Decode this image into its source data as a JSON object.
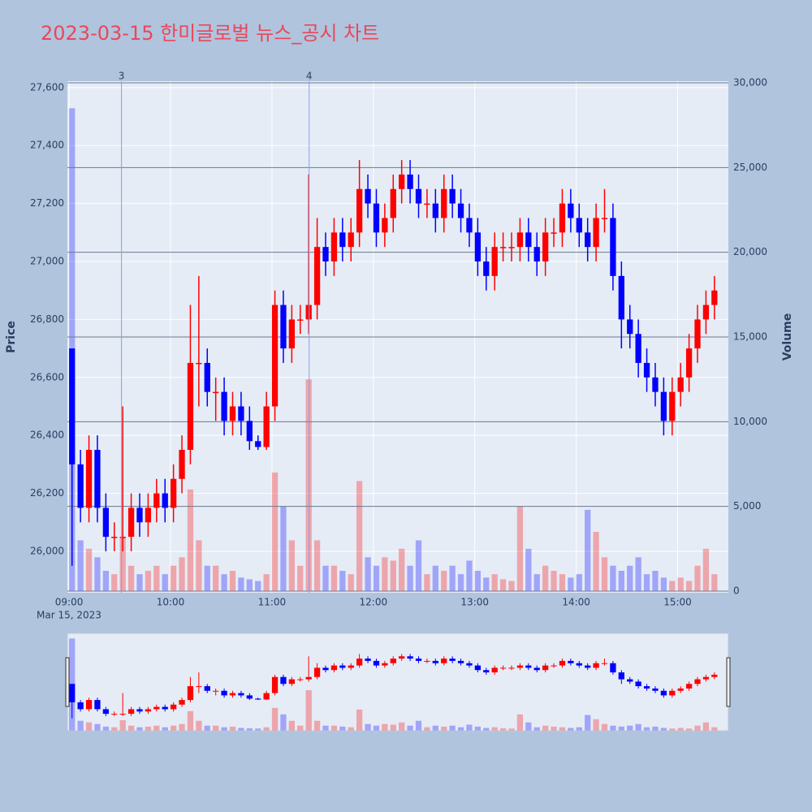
{
  "chart_data": {
    "type": "candlestick",
    "title": "2023-03-15 한미글로벌 뉴스_공시 차트",
    "y_label": "Price",
    "y2_label": "Volume",
    "x_date_label": "Mar 15, 2023",
    "increasing_color": "#ff0000",
    "decreasing_color": "#0000ff",
    "x": [
      "09:00",
      "09:05",
      "09:10",
      "09:15",
      "09:20",
      "09:25",
      "09:30",
      "09:35",
      "09:40",
      "09:45",
      "09:50",
      "09:55",
      "10:00",
      "10:05",
      "10:10",
      "10:15",
      "10:20",
      "10:25",
      "10:30",
      "10:35",
      "10:40",
      "10:45",
      "10:50",
      "10:55",
      "11:00",
      "11:05",
      "11:10",
      "11:15",
      "11:20",
      "11:25",
      "11:30",
      "11:35",
      "11:40",
      "11:45",
      "11:50",
      "11:55",
      "12:00",
      "12:05",
      "12:10",
      "12:15",
      "12:20",
      "12:25",
      "12:30",
      "12:35",
      "12:40",
      "12:45",
      "12:50",
      "12:55",
      "13:00",
      "13:05",
      "13:10",
      "13:15",
      "13:20",
      "13:25",
      "13:30",
      "13:35",
      "13:40",
      "13:45",
      "13:50",
      "13:55",
      "14:00",
      "14:05",
      "14:10",
      "14:15",
      "14:20",
      "14:25",
      "14:30",
      "14:35",
      "14:40",
      "14:45",
      "14:50",
      "14:55",
      "15:00",
      "15:05",
      "15:10",
      "15:15",
      "15:20"
    ],
    "open": [
      26700,
      26300,
      26150,
      26350,
      26150,
      26050,
      26050,
      26050,
      26150,
      26100,
      26150,
      26200,
      26150,
      26250,
      26350,
      26650,
      26650,
      26550,
      26550,
      26450,
      26500,
      26450,
      26380,
      26360,
      26500,
      26850,
      26700,
      26800,
      26800,
      26850,
      27050,
      27000,
      27100,
      27050,
      27100,
      27250,
      27200,
      27100,
      27150,
      27250,
      27300,
      27250,
      27200,
      27200,
      27150,
      27250,
      27200,
      27150,
      27100,
      27000,
      26950,
      27050,
      27050,
      27050,
      27100,
      27050,
      27000,
      27100,
      27100,
      27200,
      27150,
      27100,
      27050,
      27150,
      27150,
      26950,
      26800,
      26750,
      26650,
      26600,
      26550,
      26450,
      26550,
      26600,
      26700,
      26800,
      26850
    ],
    "high": [
      26700,
      26350,
      26400,
      26400,
      26200,
      26100,
      26500,
      26200,
      26200,
      26200,
      26250,
      26250,
      26300,
      26400,
      26850,
      26950,
      26700,
      26600,
      26600,
      26550,
      26550,
      26500,
      26400,
      26550,
      26900,
      26900,
      26850,
      26850,
      27300,
      27150,
      27100,
      27150,
      27150,
      27150,
      27350,
      27300,
      27250,
      27200,
      27300,
      27350,
      27350,
      27300,
      27250,
      27250,
      27300,
      27300,
      27250,
      27200,
      27150,
      27050,
      27100,
      27100,
      27100,
      27150,
      27150,
      27100,
      27150,
      27150,
      27250,
      27250,
      27200,
      27150,
      27200,
      27250,
      27200,
      27000,
      26850,
      26800,
      26700,
      26650,
      26600,
      26600,
      26650,
      26750,
      26850,
      26900,
      26950
    ],
    "low": [
      25950,
      26100,
      26100,
      26100,
      26000,
      26000,
      26000,
      26000,
      26050,
      26050,
      26100,
      26100,
      26100,
      26200,
      26300,
      26500,
      26500,
      26450,
      26400,
      26400,
      26400,
      26350,
      26350,
      26350,
      26450,
      26650,
      26650,
      26750,
      26750,
      26800,
      26950,
      26950,
      27000,
      27000,
      27050,
      27150,
      27050,
      27050,
      27100,
      27200,
      27200,
      27150,
      27150,
      27100,
      27100,
      27150,
      27100,
      27050,
      26950,
      26900,
      26900,
      27000,
      27000,
      27000,
      27000,
      26950,
      26950,
      27050,
      27050,
      27100,
      27050,
      27000,
      27000,
      27100,
      26900,
      26700,
      26700,
      26600,
      26550,
      26500,
      26400,
      26400,
      26500,
      26550,
      26650,
      26750,
      26800
    ],
    "close": [
      26300,
      26150,
      26350,
      26150,
      26050,
      26050,
      26050,
      26150,
      26100,
      26150,
      26200,
      26150,
      26250,
      26350,
      26650,
      26650,
      26550,
      26550,
      26450,
      26500,
      26450,
      26380,
      26360,
      26500,
      26850,
      26700,
      26800,
      26800,
      26850,
      27050,
      27000,
      27100,
      27050,
      27100,
      27250,
      27200,
      27100,
      27150,
      27250,
      27300,
      27250,
      27200,
      27200,
      27150,
      27250,
      27200,
      27150,
      27100,
      27000,
      26950,
      27050,
      27050,
      27050,
      27100,
      27050,
      27000,
      27100,
      27100,
      27200,
      27150,
      27100,
      27050,
      27150,
      27150,
      26950,
      26800,
      26750,
      26650,
      26600,
      26550,
      26450,
      26550,
      26600,
      26700,
      26800,
      26850,
      26900
    ],
    "volume": [
      28500,
      3000,
      2500,
      2000,
      1200,
      1000,
      3200,
      1500,
      1000,
      1200,
      1500,
      1000,
      1500,
      2000,
      6000,
      3000,
      1500,
      1500,
      1000,
      1200,
      800,
      700,
      600,
      1000,
      7000,
      5000,
      3000,
      1500,
      12500,
      3000,
      1500,
      1500,
      1200,
      1000,
      6500,
      2000,
      1500,
      2000,
      1800,
      2500,
      1500,
      3000,
      1000,
      1500,
      1200,
      1500,
      1000,
      1800,
      1200,
      800,
      1000,
      700,
      600,
      5000,
      2500,
      1000,
      1500,
      1200,
      1000,
      800,
      1000,
      4800,
      3500,
      2000,
      1500,
      1200,
      1500,
      2000,
      1000,
      1200,
      800,
      600,
      800,
      600,
      1500,
      2500,
      1000
    ],
    "xlim": [
      "08:59",
      "15:30"
    ],
    "xticks": [
      "09:00",
      "10:00",
      "11:00",
      "12:00",
      "13:00",
      "14:00",
      "15:00"
    ],
    "ylim": [
      25857,
      27622
    ],
    "yticks": [
      {
        "value": 26000,
        "label": "26,000"
      },
      {
        "value": 26200,
        "label": "26,200"
      },
      {
        "value": 26400,
        "label": "26,400"
      },
      {
        "value": 26600,
        "label": "26,600"
      },
      {
        "value": 26800,
        "label": "26,800"
      },
      {
        "value": 27000,
        "label": "27,000"
      },
      {
        "value": 27200,
        "label": "27,200"
      },
      {
        "value": 27400,
        "label": "27,400"
      },
      {
        "value": 27600,
        "label": "27,600"
      }
    ],
    "y2lim": [
      -96,
      30096
    ],
    "y2ticks": [
      0,
      {
        "value": 5000,
        "label": "5,000"
      },
      {
        "value": 10000,
        "label": "10,000"
      },
      {
        "value": 15000,
        "label": "15,000"
      },
      {
        "value": 20000,
        "label": "20,000"
      },
      {
        "value": 25000,
        "label": "25,000"
      },
      {
        "value": 30000,
        "label": "30,000"
      }
    ],
    "annotations": [
      {
        "x": "09:31",
        "text": "3"
      },
      {
        "x": "11:22",
        "text": "4"
      }
    ],
    "grid": true,
    "range_slider": true
  }
}
